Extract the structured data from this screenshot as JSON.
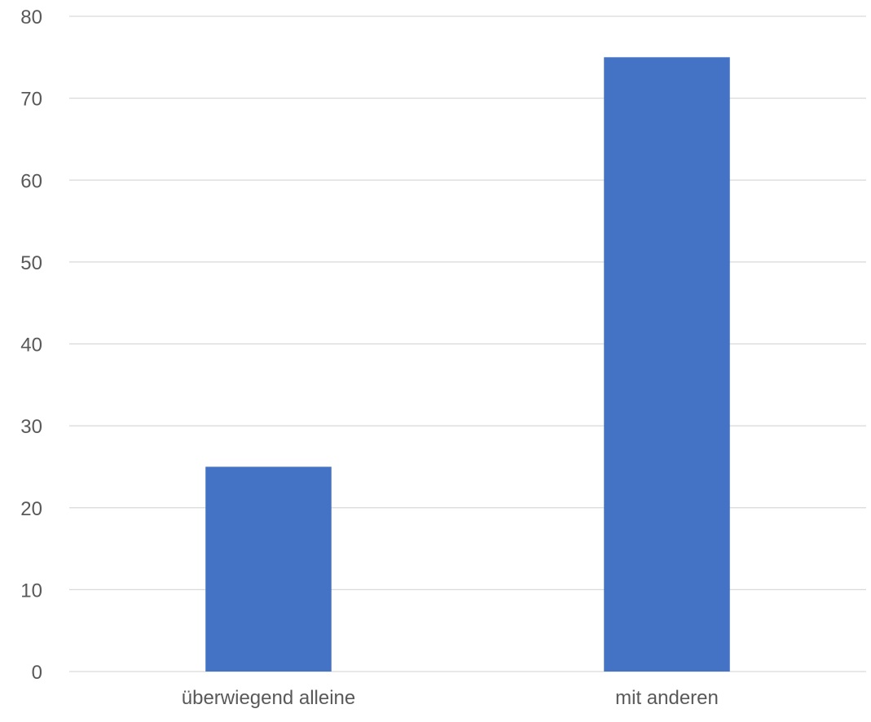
{
  "chart_data": {
    "type": "bar",
    "title": "",
    "xlabel": "",
    "ylabel": "",
    "categories": [
      "überwiegend alleine",
      "mit anderen"
    ],
    "series": [
      {
        "values": [
          25,
          75
        ]
      }
    ],
    "ylim": [
      0,
      80
    ],
    "yticks": [
      0,
      10,
      20,
      30,
      40,
      50,
      60,
      70,
      80
    ],
    "grid": true,
    "legend": "none",
    "colors": {
      "bar": "#4472C4",
      "grid": "#D9D9D9",
      "text": "#595959"
    }
  }
}
